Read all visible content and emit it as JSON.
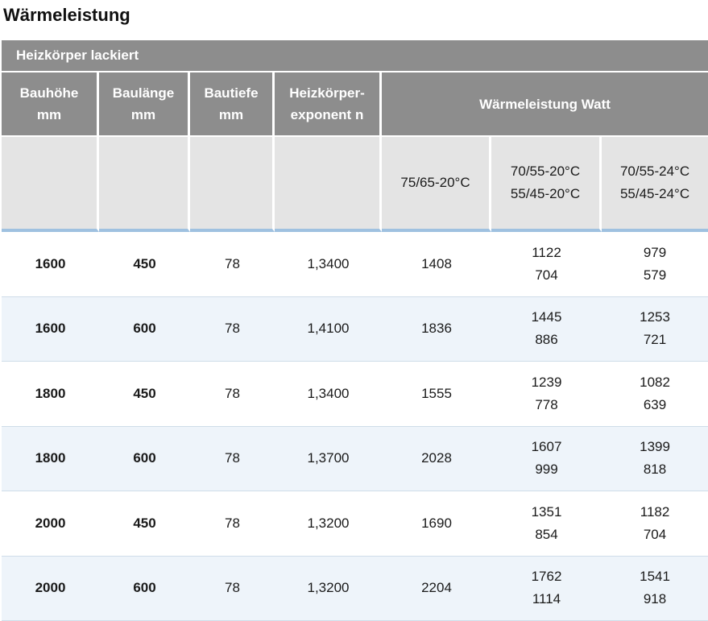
{
  "title": "Wärmeleistung",
  "section_label": "Heizkörper lackiert",
  "headers": {
    "bauhoehe": [
      "Bauhöhe",
      "mm"
    ],
    "baulaenge": [
      "Baulänge",
      "mm"
    ],
    "bautiefe": [
      "Bautiefe",
      "mm"
    ],
    "exponent": [
      "Heizkörper-",
      "exponent n"
    ],
    "waermeleistung": "Wärmeleistung Watt"
  },
  "subheaders": {
    "col1": [
      "75/65-20°C"
    ],
    "col2": [
      "70/55-20°C",
      "55/45-20°C"
    ],
    "col3": [
      "70/55-24°C",
      "55/45-24°C"
    ]
  },
  "rows": [
    {
      "bauhoehe": "1600",
      "baulaenge": "450",
      "bautiefe": "78",
      "exponent": "1,3400",
      "w1": "1408",
      "w2": [
        "1122",
        "704"
      ],
      "w3": [
        "979",
        "579"
      ]
    },
    {
      "bauhoehe": "1600",
      "baulaenge": "600",
      "bautiefe": "78",
      "exponent": "1,4100",
      "w1": "1836",
      "w2": [
        "1445",
        "886"
      ],
      "w3": [
        "1253",
        "721"
      ]
    },
    {
      "bauhoehe": "1800",
      "baulaenge": "450",
      "bautiefe": "78",
      "exponent": "1,3400",
      "w1": "1555",
      "w2": [
        "1239",
        "778"
      ],
      "w3": [
        "1082",
        "639"
      ]
    },
    {
      "bauhoehe": "1800",
      "baulaenge": "600",
      "bautiefe": "78",
      "exponent": "1,3700",
      "w1": "2028",
      "w2": [
        "1607",
        "999"
      ],
      "w3": [
        "1399",
        "818"
      ]
    },
    {
      "bauhoehe": "2000",
      "baulaenge": "450",
      "bautiefe": "78",
      "exponent": "1,3200",
      "w1": "1690",
      "w2": [
        "1351",
        "854"
      ],
      "w3": [
        "1182",
        "704"
      ]
    },
    {
      "bauhoehe": "2000",
      "baulaenge": "600",
      "bautiefe": "78",
      "exponent": "1,3200",
      "w1": "2204",
      "w2": [
        "1762",
        "1114"
      ],
      "w3": [
        "1541",
        "918"
      ]
    }
  ],
  "colors": {
    "header_gray": "#8d8d8d",
    "subheader_gray": "#e4e4e4",
    "accent_blue": "#9fc1e0",
    "alt_row": "#eef4fa"
  }
}
